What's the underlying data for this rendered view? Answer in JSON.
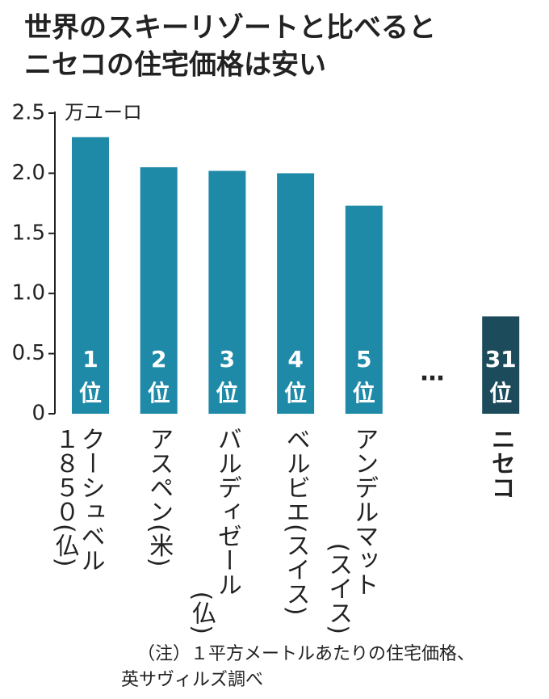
{
  "chart_data": {
    "type": "bar",
    "title": [
      "世界のスキーリゾートと比べると",
      "ニセコの住宅価格は安い"
    ],
    "y_unit": "万ユーロ",
    "categories": [
      [
        "クーシュベル",
        "１８５０(仏)"
      ],
      [
        "アスペン(米)"
      ],
      [
        "バルディゼール",
        "(仏)"
      ],
      [
        "ベルビエ(スイス)"
      ],
      [
        "アンデルマット",
        "(スイス)"
      ],
      null,
      [
        "ニセコ"
      ]
    ],
    "ranks": [
      "1",
      "2",
      "3",
      "4",
      "5",
      "…",
      "31"
    ],
    "rank_suffix": "位",
    "values": [
      2.3,
      2.05,
      2.02,
      2.0,
      1.73,
      null,
      0.81
    ],
    "colors": [
      "#1e8aa8",
      "#1e8aa8",
      "#1e8aa8",
      "#1e8aa8",
      "#1e8aa8",
      "#1e8aa8",
      "#1c4c5c"
    ],
    "ylim": [
      0,
      2.5
    ],
    "yticks": [
      0,
      0.5,
      {
        "value": 1,
        "label": "1.0"
      },
      1.5,
      {
        "value": 2,
        "label": "2.0"
      },
      2.5
    ],
    "grid": false,
    "note": [
      "（注）１平方メートルあたりの住宅価格、",
      "英サヴィルズ調べ"
    ]
  }
}
